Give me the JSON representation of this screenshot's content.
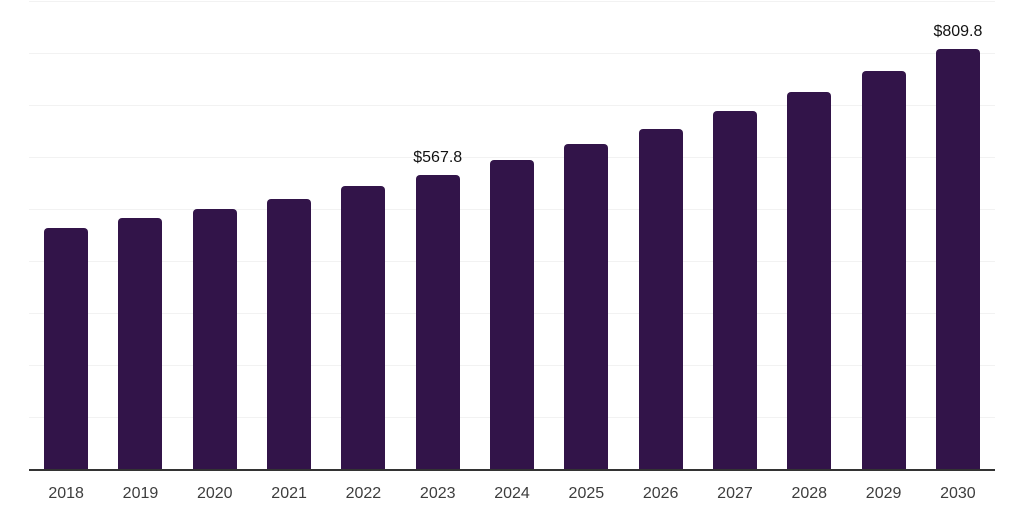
{
  "chart_data": {
    "type": "bar",
    "title": "",
    "xlabel": "",
    "ylabel": "",
    "categories": [
      "2018",
      "2019",
      "2020",
      "2021",
      "2022",
      "2023",
      "2024",
      "2025",
      "2026",
      "2027",
      "2028",
      "2029",
      "2030"
    ],
    "values": [
      466,
      484,
      502,
      522,
      546,
      567.8,
      597,
      627,
      656,
      690,
      727,
      767,
      809.8
    ],
    "data_labels": [
      null,
      null,
      null,
      null,
      null,
      "$567.8",
      null,
      null,
      null,
      null,
      null,
      null,
      "$809.8"
    ],
    "ylim": [
      0,
      900
    ],
    "gridline_step": 100,
    "y_tick_labels_visible": false,
    "grid": "horizontal",
    "legend_position": "none"
  },
  "style": {
    "bar_color": "#321449",
    "gridline_color": "#f2f2f2",
    "axis_line_color": "#333333",
    "x_tick_label_color": "#3d3d3d",
    "data_label_color": "#121212",
    "background_color": "#ffffff"
  }
}
